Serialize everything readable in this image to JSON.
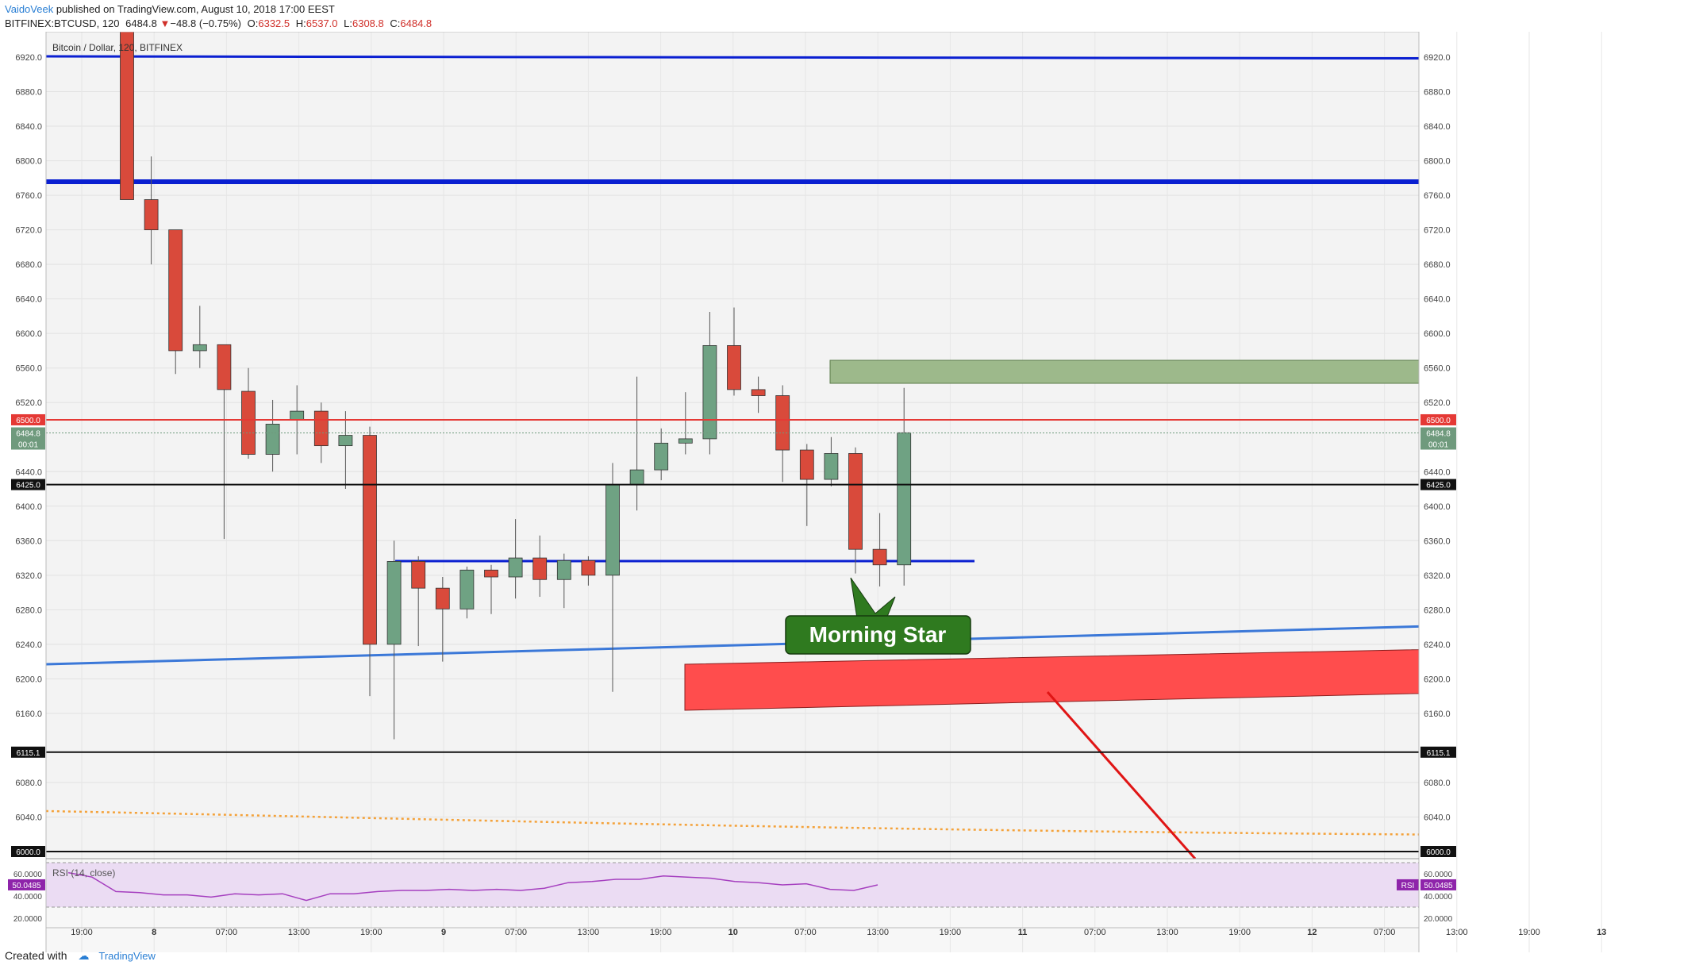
{
  "header": {
    "author": "VaidoVeek",
    "published": "published on TradingView.com, August 10, 2018 17:00 EEST",
    "symbol": "BITFINEX:BTCUSD, 120",
    "last": "6484.8",
    "change": "−48.8 (−0.75%)",
    "o_label": "O:",
    "o_value": "6332.5",
    "h_label": "H:",
    "h_value": "6537.0",
    "l_label": "L:",
    "l_value": "6308.8",
    "c_label": "C:",
    "c_value": "6484.8"
  },
  "footer": {
    "created_with": "Created with",
    "brand": "TradingView"
  },
  "colors": {
    "up": "#6fa283",
    "down": "#d94a3b",
    "bg": "#f3f3f3",
    "resistance": "#0a1fd1",
    "trend": "#3b78d8",
    "ma": "#f4a23a",
    "rsi_line": "#a53fbf",
    "rsi_bg": "#ebdcf3",
    "red_zone": "#ff4d4d",
    "green_zone": "#9db98b"
  },
  "chart_data": [
    {
      "type": "candlestick",
      "title": "Bitcoin / Dollar, 120, BITFINEX",
      "ylim": [
        5990,
        6950
      ],
      "yticks": [
        "6920.0",
        "6880.0",
        "6840.0",
        "6800.0",
        "6760.0",
        "6720.0",
        "6680.0",
        "6640.0",
        "6600.0",
        "6560.0",
        "6520.0",
        "6440.0",
        "6400.0",
        "6360.0",
        "6320.0",
        "6280.0",
        "6240.0",
        "6200.0",
        "6160.0",
        "6080.0",
        "6040.0"
      ],
      "xtick_labels": [
        "19:00",
        "8",
        "07:00",
        "13:00",
        "19:00",
        "9",
        "07:00",
        "13:00",
        "19:00",
        "10",
        "07:00",
        "13:00",
        "19:00",
        "11",
        "07:00",
        "13:00",
        "19:00",
        "12",
        "07:00",
        "13:00",
        "19:00",
        "13"
      ],
      "grid": true,
      "candles": [
        {
          "o": 7000,
          "h": 7020,
          "l": 6760,
          "c": 6755
        },
        {
          "o": 6755,
          "h": 6805,
          "l": 6680,
          "c": 6720
        },
        {
          "o": 6720,
          "h": 6720,
          "l": 6553,
          "c": 6580
        },
        {
          "o": 6580,
          "h": 6632,
          "l": 6560,
          "c": 6587
        },
        {
          "o": 6587,
          "h": 6587,
          "l": 6362,
          "c": 6535
        },
        {
          "o": 6533,
          "h": 6560,
          "l": 6455,
          "c": 6460
        },
        {
          "o": 6460,
          "h": 6523,
          "l": 6440,
          "c": 6495
        },
        {
          "o": 6500,
          "h": 6540,
          "l": 6460,
          "c": 6510
        },
        {
          "o": 6510,
          "h": 6520,
          "l": 6450,
          "c": 6470
        },
        {
          "o": 6470,
          "h": 6510,
          "l": 6420,
          "c": 6482
        },
        {
          "o": 6482,
          "h": 6492,
          "l": 6180,
          "c": 6240
        },
        {
          "o": 6240,
          "h": 6360,
          "l": 6130,
          "c": 6336
        },
        {
          "o": 6336,
          "h": 6342,
          "l": 6238,
          "c": 6305
        },
        {
          "o": 6305,
          "h": 6318,
          "l": 6220,
          "c": 6281
        },
        {
          "o": 6281,
          "h": 6330,
          "l": 6270,
          "c": 6326
        },
        {
          "o": 6326,
          "h": 6332,
          "l": 6275,
          "c": 6318
        },
        {
          "o": 6318,
          "h": 6385,
          "l": 6293,
          "c": 6340
        },
        {
          "o": 6340,
          "h": 6366,
          "l": 6295,
          "c": 6315
        },
        {
          "o": 6315,
          "h": 6345,
          "l": 6282,
          "c": 6337
        },
        {
          "o": 6337,
          "h": 6342,
          "l": 6308,
          "c": 6320
        },
        {
          "o": 6320,
          "h": 6450,
          "l": 6185,
          "c": 6425
        },
        {
          "o": 6425,
          "h": 6550,
          "l": 6395,
          "c": 6442
        },
        {
          "o": 6442,
          "h": 6490,
          "l": 6430,
          "c": 6473
        },
        {
          "o": 6473,
          "h": 6532,
          "l": 6460,
          "c": 6478
        },
        {
          "o": 6478,
          "h": 6625,
          "l": 6460,
          "c": 6586
        },
        {
          "o": 6586,
          "h": 6630,
          "l": 6528,
          "c": 6535
        },
        {
          "o": 6535,
          "h": 6550,
          "l": 6508,
          "c": 6528
        },
        {
          "o": 6528,
          "h": 6540,
          "l": 6428,
          "c": 6465
        },
        {
          "o": 6465,
          "h": 6472,
          "l": 6377,
          "c": 6431
        },
        {
          "o": 6431,
          "h": 6480,
          "l": 6423,
          "c": 6461
        },
        {
          "o": 6461,
          "h": 6468,
          "l": 6322,
          "c": 6350
        },
        {
          "o": 6350,
          "h": 6392,
          "l": 6307,
          "c": 6332
        },
        {
          "o": 6332,
          "h": 6537,
          "l": 6308,
          "c": 6485
        }
      ],
      "horizontal_levels": [
        {
          "label": "6500.0",
          "value": 6500,
          "color": "#e53935"
        },
        {
          "label": "6425.0",
          "value": 6425,
          "color": "#111111"
        },
        {
          "label": "6115.1",
          "value": 6115.1,
          "color": "#111111"
        },
        {
          "label": "6000.0",
          "value": 6000,
          "color": "#111111"
        }
      ],
      "current_price": {
        "value": 6484.8,
        "label": "6484.8",
        "timer": "00:01"
      },
      "annotation": "Morning Star"
    },
    {
      "type": "line",
      "title": "RSI (14, close)",
      "ylim": [
        15,
        70
      ],
      "yticks": [
        "60.0000",
        "40.0000",
        "20.0000"
      ],
      "last_value": "50.0485",
      "series_label": "RSI",
      "values": [
        61,
        57,
        44,
        43,
        41,
        41,
        39,
        42,
        41,
        42,
        36,
        42,
        42,
        44,
        45,
        45,
        46,
        45,
        46,
        45,
        47,
        52,
        53,
        55,
        55,
        58,
        57,
        56,
        53,
        52,
        50,
        51,
        46,
        45,
        50
      ]
    }
  ]
}
